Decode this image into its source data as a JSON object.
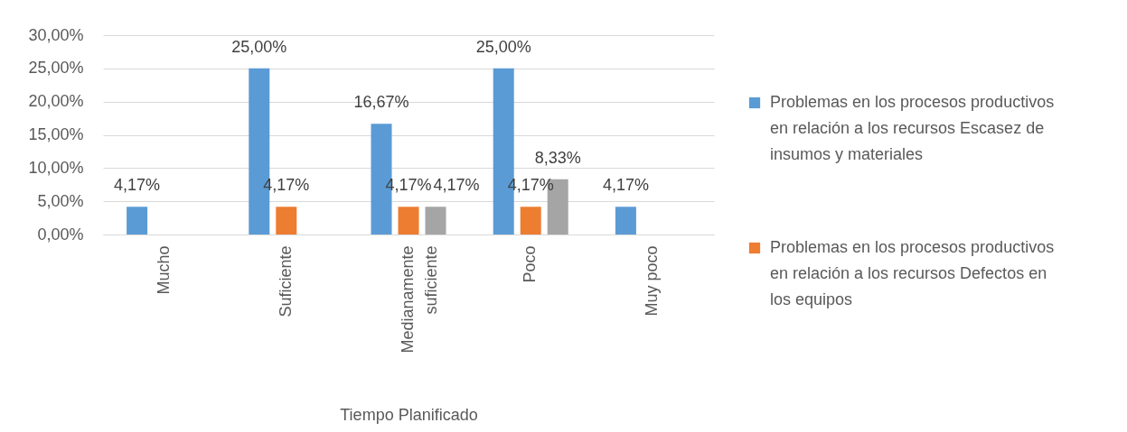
{
  "chart_data": {
    "type": "bar",
    "xlabel": "Tiempo Planificado",
    "categories": [
      "Mucho",
      "Suficiente",
      "Medianamente suficiente",
      "Poco",
      "Muy poco"
    ],
    "series": [
      {
        "name": "Problemas en los procesos productivos en relación a los recursos Escasez de insumos y materiales",
        "color": "#5b9bd5",
        "values": [
          4.17,
          25,
          16.67,
          25,
          4.17
        ],
        "value_labels": [
          "4,17%",
          "25,00%",
          "16,67%",
          "25,00%",
          "4,17%"
        ]
      },
      {
        "name": "Problemas en los procesos productivos en relación a los recursos Defectos en los equipos",
        "color": "#ed7d31",
        "values": [
          null,
          4.17,
          4.17,
          4.17,
          null
        ],
        "value_labels": [
          null,
          "4,17%",
          "4,17%",
          "4,17%",
          null
        ]
      },
      {
        "color": "#a5a5a5",
        "values": [
          null,
          null,
          4.17,
          8.33,
          null
        ],
        "value_labels": [
          null,
          null,
          "4,17%",
          "8,33%",
          null
        ]
      }
    ],
    "ylim": [
      0,
      30
    ],
    "yticks": [
      {
        "value": 0,
        "label": "0,00%"
      },
      {
        "value": 5,
        "label": "5,00%"
      },
      {
        "value": 10,
        "label": "10,00%"
      },
      {
        "value": 15,
        "label": "15,00%"
      },
      {
        "value": 20,
        "label": "20,00%"
      },
      {
        "value": 25,
        "label": "25,00%"
      },
      {
        "value": 30,
        "label": "30,00%"
      }
    ],
    "grid": "y",
    "legend": "right"
  }
}
